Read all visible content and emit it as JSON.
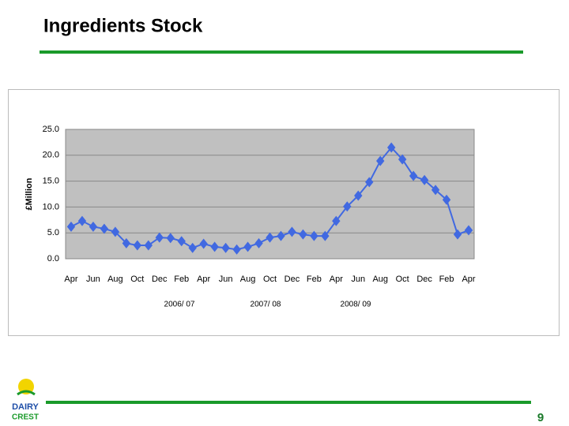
{
  "header": {
    "title": "Ingredients Stock"
  },
  "chart_data": {
    "type": "line",
    "y_label": "£Million",
    "categories": [
      "Apr",
      null,
      "Jun",
      null,
      "Aug",
      null,
      "Oct",
      null,
      "Dec",
      null,
      "Feb",
      null,
      "Apr",
      null,
      "Jun",
      null,
      "Aug",
      null,
      "Oct",
      null,
      "Dec",
      null,
      "Feb",
      null,
      "Apr",
      null,
      "Jun",
      null,
      "Aug",
      null,
      "Oct",
      null,
      "Dec",
      null,
      "Feb",
      null,
      "Apr"
    ],
    "series": [
      {
        "name": "Ingredients Stock",
        "color": "#4169e1",
        "values": [
          6.2,
          7.3,
          6.2,
          5.8,
          5.2,
          3.0,
          2.6,
          2.6,
          4.1,
          4.0,
          3.4,
          2.1,
          2.9,
          2.3,
          2.1,
          1.8,
          2.3,
          3.0,
          4.1,
          4.4,
          5.2,
          4.7,
          4.4,
          4.4,
          7.3,
          10.1,
          12.2,
          14.8,
          18.9,
          21.5,
          19.2,
          16.0,
          15.2,
          13.3,
          11.4,
          4.7,
          5.5
        ]
      }
    ],
    "ylim": [
      0,
      25
    ],
    "yticks": [
      {
        "value": 0,
        "label": "0.0"
      },
      {
        "value": 5,
        "label": "5.0"
      },
      {
        "value": 10,
        "label": "10.0"
      },
      {
        "value": 15,
        "label": "15.0"
      },
      {
        "value": 20,
        "label": "20.0"
      },
      {
        "value": 25,
        "label": "25.0"
      }
    ],
    "grid": true,
    "annotations": [
      "2006/ 07",
      "2007/ 08",
      "2008/ 09"
    ]
  },
  "footer": {
    "logo": [
      "DAIRY",
      "CREST"
    ],
    "page": "9"
  }
}
